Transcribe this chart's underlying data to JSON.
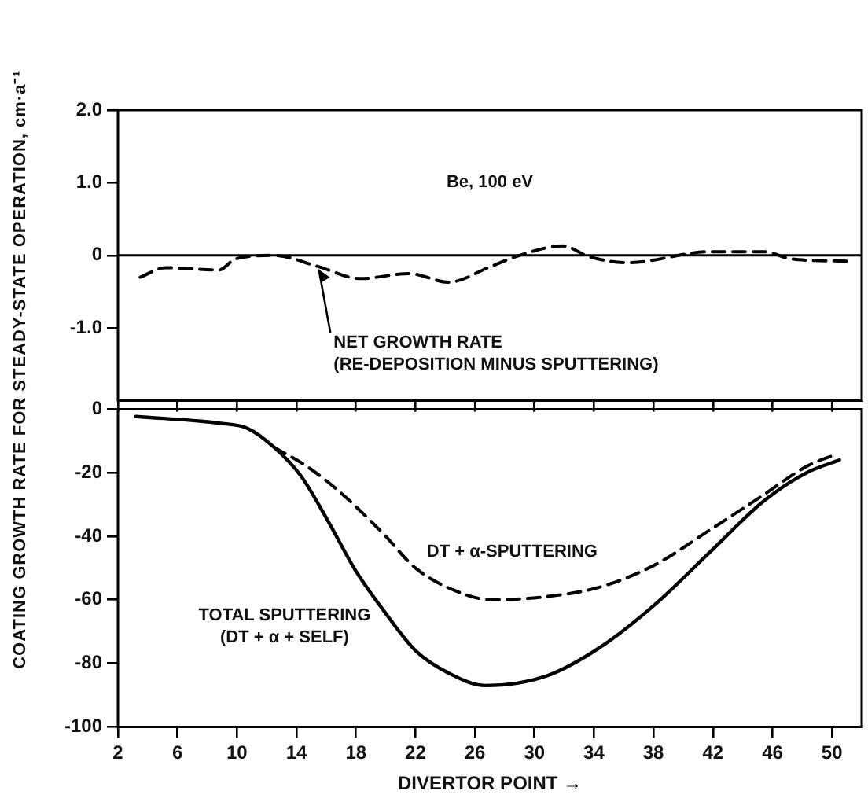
{
  "chart_data": [
    {
      "type": "line",
      "ylabel": "COATING GROWTH RATE FOR STEADY-STATE OPERATION,  cm·a⁻¹",
      "xlim": [
        2,
        52
      ],
      "xticks": [
        2,
        6,
        10,
        14,
        18,
        22,
        26,
        30,
        34,
        38,
        42,
        46,
        50
      ],
      "ylim": [
        -2,
        2
      ],
      "yticks": [
        {
          "value": 2,
          "label": "2.0"
        },
        {
          "value": 1,
          "label": "1.0"
        },
        0,
        {
          "value": -1,
          "label": "-1.0"
        }
      ],
      "tick_labels": "y",
      "grid": false,
      "legend": false,
      "marker": "none",
      "annotations": [
        "Be, 100 eV"
      ],
      "ref_lines": [
        {
          "axis": "y",
          "value": 0,
          "color": "#000000",
          "line_style": "solid"
        }
      ],
      "series": [
        {
          "name": "NET GROWTH RATE\n(RE-DEPOSITION MINUS SPUTTERING)",
          "color": "#000000",
          "line_style": "dashed",
          "x": [
            3.5,
            5.2,
            8.8,
            9.9,
            12.5,
            15.4,
            18.3,
            21.6,
            24.2,
            27.1,
            29,
            31.9,
            33.7,
            36.3,
            41.8,
            45.4,
            47.3,
            51
          ],
          "values": [
            -0.3,
            -0.17,
            -0.2,
            -0.05,
            0,
            -0.15,
            -0.32,
            -0.25,
            -0.37,
            -0.15,
            0,
            0.13,
            -0.02,
            -0.1,
            0.05,
            0.05,
            -0.05,
            -0.08
          ]
        }
      ]
    },
    {
      "type": "line",
      "xlabel": "DIVERTOR POINT →",
      "xlim": [
        2,
        52
      ],
      "xticks": [
        2,
        6,
        10,
        14,
        18,
        22,
        26,
        30,
        34,
        38,
        42,
        46,
        50
      ],
      "ylim": [
        -100,
        0
      ],
      "yticks": [
        0,
        -20,
        -40,
        -60,
        -80,
        -100
      ],
      "grid": false,
      "legend": false,
      "marker": "none",
      "series": [
        {
          "name": "DT + α-SPUTTERING",
          "color": "#000000",
          "line_style": "dashed",
          "x": [
            12.5,
            14.7,
            16.9,
            19.8,
            22,
            24.6,
            27.1,
            30.8,
            34.4,
            38.1,
            41.8,
            45.4,
            48.3,
            50.4
          ],
          "values": [
            -12,
            -18,
            -26,
            -39,
            -50,
            -57,
            -60,
            -59,
            -56,
            -49,
            -38,
            -27,
            -18,
            -14
          ]
        },
        {
          "name": "TOTAL SPUTTERING\n(DT + α + SELF)",
          "color": "#000000",
          "line_style": "solid",
          "x": [
            3.2,
            8.8,
            10.7,
            12.5,
            14.3,
            16.1,
            18,
            19.8,
            22,
            24.2,
            26.7,
            30.8,
            34.4,
            38.1,
            41.8,
            45.4,
            48.3,
            50.5
          ],
          "values": [
            -2.3,
            -4.4,
            -6,
            -12,
            -21,
            -35,
            -51,
            -63,
            -76,
            -83,
            -87,
            -84,
            -75,
            -61.5,
            -45,
            -29,
            -20,
            -16
          ]
        }
      ]
    }
  ]
}
